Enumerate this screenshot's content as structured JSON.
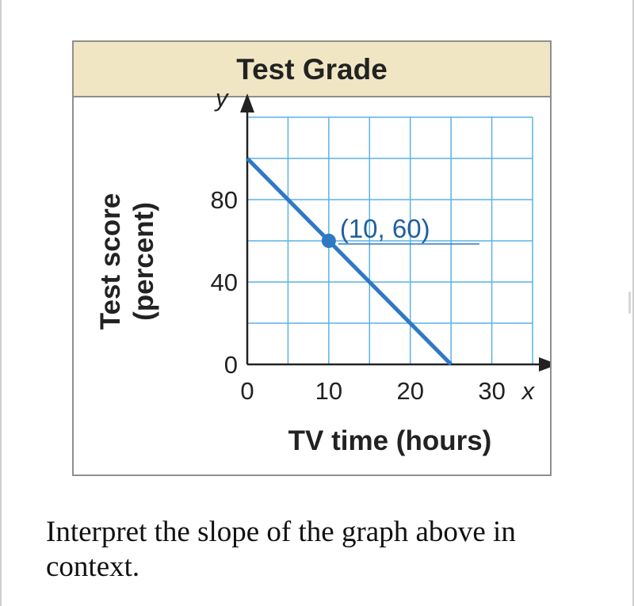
{
  "chart_data": {
    "type": "line",
    "title": "Test Grade",
    "xlabel": "TV time (hours)",
    "ylabel_line1": "Test score",
    "ylabel_line2": "(percent)",
    "x_var": "x",
    "y_var": "y",
    "xlim": [
      0,
      35
    ],
    "ylim": [
      0,
      120
    ],
    "x_grid_step": 5,
    "y_grid_step": 20,
    "grid": true,
    "x_ticks": [
      {
        "value": 0,
        "label": "0"
      },
      {
        "value": 10,
        "label": "10"
      },
      {
        "value": 20,
        "label": "20"
      },
      {
        "value": 30,
        "label": "30"
      }
    ],
    "y_ticks": [
      {
        "value": 0,
        "label": "0"
      },
      {
        "value": 40,
        "label": "40"
      },
      {
        "value": 80,
        "label": "80"
      }
    ],
    "series": [
      {
        "x": [
          0,
          25
        ],
        "y": [
          100,
          0
        ]
      }
    ],
    "highlight_point": {
      "x": 10,
      "y": 60,
      "label": "(10, 60)"
    },
    "colors": {
      "line": "#2f78c4",
      "grid": "#5bb2e6",
      "axis": "#222222",
      "header_bg": "#f1e6c3"
    }
  },
  "question": "Interpret the slope of the graph above in context."
}
